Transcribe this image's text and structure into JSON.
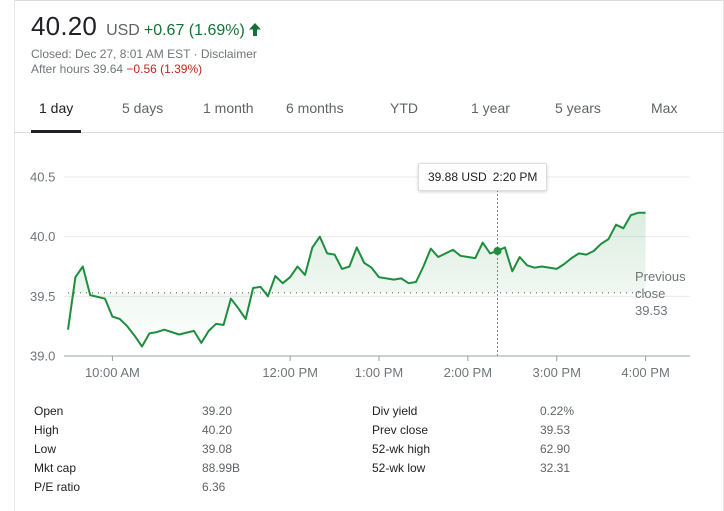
{
  "quote": {
    "price": "40.20",
    "currency": "USD",
    "change": "+0.67 (1.69%)",
    "change_color": "#137333",
    "arrow_icon": "arrow-up-icon",
    "closed_text": "Closed: Dec 27, 8:01 AM EST",
    "separator": " · ",
    "disclaimer": "Disclaimer",
    "after_hours_label": "After hours",
    "after_hours_price": "39.64",
    "after_hours_change": "−0.56 (1.39%)",
    "after_hours_color": "#c5221f"
  },
  "tabs": [
    {
      "label": "1 day",
      "active": true
    },
    {
      "label": "5 days",
      "active": false
    },
    {
      "label": "1 month",
      "active": false
    },
    {
      "label": "6 months",
      "active": false
    },
    {
      "label": "YTD",
      "active": false
    },
    {
      "label": "1 year",
      "active": false
    },
    {
      "label": "5 years",
      "active": false
    },
    {
      "label": "Max",
      "active": false
    }
  ],
  "tooltip": {
    "price": "39.88 USD",
    "time": "2:20 PM"
  },
  "chart_data": {
    "type": "area",
    "title": "",
    "xlabel": "",
    "ylabel": "",
    "line_color": "#1e8e3e",
    "grid": true,
    "ylim": [
      39.0,
      40.5
    ],
    "xlim": [
      "09:30",
      "16:30"
    ],
    "y_ticks": [
      "40.5",
      "40.0",
      "39.5",
      "39.0"
    ],
    "x_ticks": [
      {
        "label": "10:00 AM",
        "time": "10:00"
      },
      {
        "label": "12:00 PM",
        "time": "12:00"
      },
      {
        "label": "1:00 PM",
        "time": "13:00"
      },
      {
        "label": "2:00 PM",
        "time": "14:00"
      },
      {
        "label": "3:00 PM",
        "time": "15:00"
      },
      {
        "label": "4:00 PM",
        "time": "16:00"
      }
    ],
    "previous_close": {
      "label_lines": [
        "Previous",
        "close",
        "39.53"
      ],
      "value": 39.53
    },
    "highlight": {
      "time": "14:20",
      "price": 39.88
    },
    "series": [
      {
        "name": "",
        "points": [
          [
            "09:30",
            39.22
          ],
          [
            "09:35",
            39.66
          ],
          [
            "09:40",
            39.75
          ],
          [
            "09:45",
            39.51
          ],
          [
            "09:55",
            39.48
          ],
          [
            "10:00",
            39.33
          ],
          [
            "10:05",
            39.31
          ],
          [
            "10:10",
            39.25
          ],
          [
            "10:15",
            39.17
          ],
          [
            "10:20",
            39.08
          ],
          [
            "10:25",
            39.19
          ],
          [
            "10:30",
            39.2
          ],
          [
            "10:35",
            39.22
          ],
          [
            "10:45",
            39.18
          ],
          [
            "10:55",
            39.21
          ],
          [
            "11:00",
            39.11
          ],
          [
            "11:05",
            39.21
          ],
          [
            "11:10",
            39.27
          ],
          [
            "11:15",
            39.26
          ],
          [
            "11:20",
            39.48
          ],
          [
            "11:25",
            39.4
          ],
          [
            "11:30",
            39.31
          ],
          [
            "11:35",
            39.57
          ],
          [
            "11:40",
            39.58
          ],
          [
            "11:45",
            39.5
          ],
          [
            "11:50",
            39.67
          ],
          [
            "11:55",
            39.61
          ],
          [
            "12:00",
            39.66
          ],
          [
            "12:05",
            39.75
          ],
          [
            "12:10",
            39.68
          ],
          [
            "12:15",
            39.91
          ],
          [
            "12:20",
            40.0
          ],
          [
            "12:25",
            39.86
          ],
          [
            "12:30",
            39.85
          ],
          [
            "12:35",
            39.73
          ],
          [
            "12:40",
            39.75
          ],
          [
            "12:45",
            39.91
          ],
          [
            "12:50",
            39.78
          ],
          [
            "12:55",
            39.74
          ],
          [
            "13:00",
            39.66
          ],
          [
            "13:10",
            39.64
          ],
          [
            "13:15",
            39.65
          ],
          [
            "13:20",
            39.61
          ],
          [
            "13:25",
            39.62
          ],
          [
            "13:30",
            39.75
          ],
          [
            "13:35",
            39.9
          ],
          [
            "13:40",
            39.83
          ],
          [
            "13:45",
            39.86
          ],
          [
            "13:50",
            39.89
          ],
          [
            "13:55",
            39.84
          ],
          [
            "14:00",
            39.83
          ],
          [
            "14:05",
            39.82
          ],
          [
            "14:10",
            39.95
          ],
          [
            "14:15",
            39.86
          ],
          [
            "14:20",
            39.88
          ],
          [
            "14:25",
            39.91
          ],
          [
            "14:30",
            39.71
          ],
          [
            "14:35",
            39.83
          ],
          [
            "14:40",
            39.76
          ],
          [
            "14:45",
            39.74
          ],
          [
            "14:50",
            39.75
          ],
          [
            "15:00",
            39.73
          ],
          [
            "15:05",
            39.77
          ],
          [
            "15:10",
            39.82
          ],
          [
            "15:15",
            39.86
          ],
          [
            "15:20",
            39.85
          ],
          [
            "15:25",
            39.88
          ],
          [
            "15:30",
            39.94
          ],
          [
            "15:35",
            39.98
          ],
          [
            "15:40",
            40.1
          ],
          [
            "15:45",
            40.07
          ],
          [
            "15:50",
            40.18
          ],
          [
            "15:55",
            40.2
          ],
          [
            "16:00",
            40.2
          ]
        ]
      }
    ]
  },
  "stats": {
    "left": [
      {
        "label": "Open",
        "value": "39.20"
      },
      {
        "label": "High",
        "value": "40.20"
      },
      {
        "label": "Low",
        "value": "39.08"
      },
      {
        "label": "Mkt cap",
        "value": "88.99B"
      },
      {
        "label": "P/E ratio",
        "value": "6.36"
      }
    ],
    "right": [
      {
        "label": "Div yield",
        "value": "0.22%"
      },
      {
        "label": "Prev close",
        "value": "39.53"
      },
      {
        "label": "52-wk high",
        "value": "62.90"
      },
      {
        "label": "52-wk low",
        "value": "32.31"
      }
    ]
  }
}
